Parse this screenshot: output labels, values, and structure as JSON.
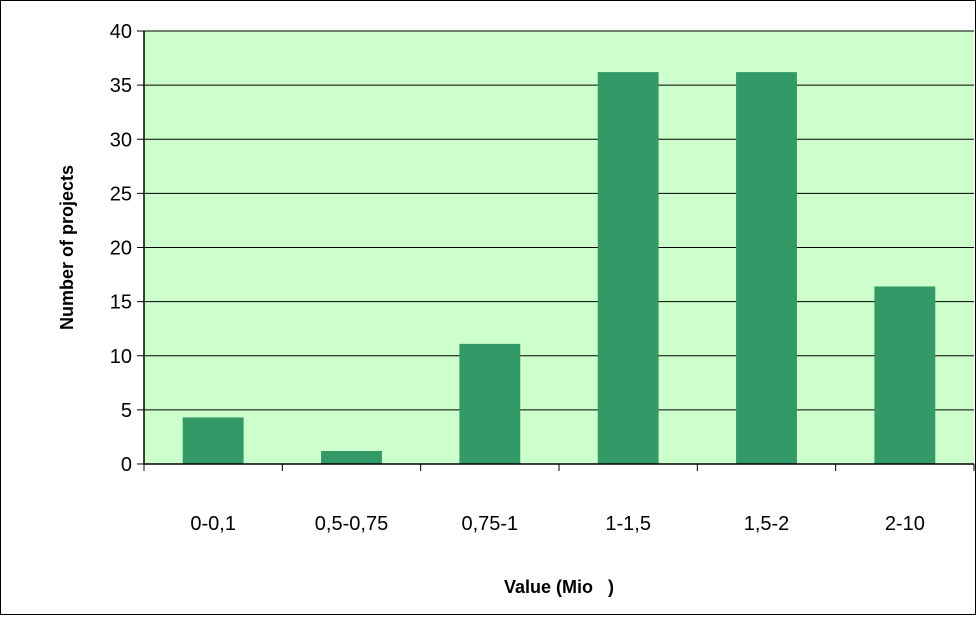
{
  "chart_data": {
    "type": "bar",
    "title": "",
    "xlabel": "Value (Mio   )",
    "ylabel": "Number of projects",
    "categories": [
      "0-0,1",
      "0,5-0,75",
      "0,75-1",
      "1-1,5",
      "1,5-2",
      "2-10"
    ],
    "values": [
      4.3,
      1.2,
      11.1,
      36.2,
      36.2,
      16.4
    ],
    "ylim": [
      0,
      40
    ],
    "yticks": [
      "0",
      "5",
      "10",
      "15",
      "20",
      "25",
      "30",
      "35",
      "40"
    ],
    "grid": true,
    "legend": "none",
    "colors": {
      "plot_background": "#ccffcc",
      "bar": "#339966",
      "gridline": "#000000"
    }
  }
}
